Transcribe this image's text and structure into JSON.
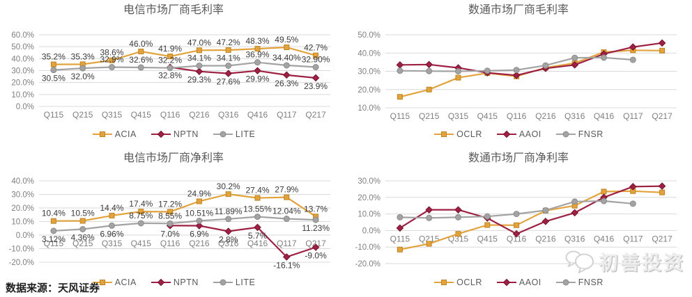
{
  "source_note": "数据来源：天风证券",
  "watermark": {
    "icon": "chat-bubbles-icon",
    "text": "初善投资"
  },
  "palette": {
    "orange": "#E2A23C",
    "maroon": "#9E2144",
    "gray": "#A3A3A3",
    "gridline": "#D9D9D9",
    "axis_text": "#7F7F7F",
    "data_label": "#3A3A3A",
    "title_text": "#595959",
    "legend_text": "#595959"
  },
  "chart_data": [
    {
      "id": "telecom-gross-margin",
      "type": "line",
      "title": "电信市场厂商毛利率",
      "categories": [
        "Q115",
        "Q215",
        "Q315",
        "Q415",
        "Q116",
        "Q216",
        "Q316",
        "Q416",
        "Q117",
        "Q217"
      ],
      "ylim": [
        0,
        60
      ],
      "ytick_step": 10,
      "grid": true,
      "legend_position": "bottom",
      "series": [
        {
          "name": "ACIA",
          "marker": "square",
          "color_key": "orange",
          "values": [
            35.2,
            35.3,
            38.6,
            46.0,
            41.9,
            47.0,
            47.2,
            48.3,
            49.5,
            42.7
          ],
          "labels": [
            "35.2%",
            "35.3%",
            "38.6%",
            "46.0%",
            "41.9%",
            "47.0%",
            "47.2%",
            "48.3%",
            "49.5%",
            "42.7%"
          ],
          "label_pos": [
            "a",
            "a",
            "a",
            "a",
            "a",
            "a",
            "a",
            "a",
            "a",
            "a"
          ]
        },
        {
          "name": "NPTN",
          "marker": "diamond",
          "color_key": "maroon",
          "values": [
            null,
            null,
            null,
            null,
            32.8,
            29.3,
            27.6,
            29.9,
            26.3,
            23.9
          ],
          "labels": [
            null,
            null,
            null,
            null,
            "32.8%",
            "29.3%",
            "27.6%",
            "29.9%",
            "26.3%",
            "23.9%"
          ],
          "label_pos": [
            null,
            null,
            null,
            null,
            "b",
            "b",
            "b",
            "b",
            "b",
            "b"
          ]
        },
        {
          "name": "LITE",
          "marker": "circle",
          "color_key": "gray",
          "values": [
            30.5,
            32.0,
            32.9,
            32.6,
            32.2,
            34.1,
            34.1,
            36.9,
            34.4,
            32.9
          ],
          "labels": [
            "30.5%",
            "32.0%",
            "32.9%",
            "32.6%",
            "32.2%",
            "34.1%",
            "34.1%",
            "36.9%",
            "34.40%",
            "32.90%"
          ],
          "label_pos": [
            "b",
            "b",
            "a",
            "a",
            "a",
            "a",
            "a",
            "a",
            "a",
            "a"
          ]
        }
      ]
    },
    {
      "id": "datacom-gross-margin",
      "type": "line",
      "title": "数通市场厂商毛利率",
      "categories": [
        "Q115",
        "Q215",
        "Q315",
        "Q415",
        "Q116",
        "Q216",
        "Q316",
        "Q416",
        "Q117",
        "Q217"
      ],
      "ylim": [
        10,
        50
      ],
      "ytick_step": 10,
      "grid": true,
      "legend_position": "bottom",
      "series": [
        {
          "name": "OCLR",
          "marker": "square",
          "color_key": "orange",
          "values": [
            16.0,
            20.0,
            26.5,
            29.0,
            27.2,
            32.0,
            34.5,
            40.5,
            41.5,
            41.3
          ]
        },
        {
          "name": "AAOI",
          "marker": "diamond",
          "color_key": "maroon",
          "values": [
            33.5,
            33.7,
            31.9,
            29.2,
            27.8,
            31.6,
            33.5,
            39.5,
            43.3,
            45.5
          ]
        },
        {
          "name": "FNSR",
          "marker": "circle",
          "color_key": "gray",
          "values": [
            30.3,
            30.1,
            30.0,
            30.3,
            30.7,
            33.2,
            37.4,
            37.5,
            36.3,
            null
          ]
        }
      ]
    },
    {
      "id": "telecom-net-margin",
      "type": "line",
      "title": "电信市场厂商净利率",
      "categories": [
        "Q115",
        "Q215",
        "Q315",
        "Q415",
        "Q116",
        "Q216",
        "Q316",
        "Q416",
        "Q117",
        "Q217"
      ],
      "ylim": [
        -20,
        40
      ],
      "ytick_step": 10,
      "grid": true,
      "legend_position": "bottom",
      "series": [
        {
          "name": "ACIA",
          "marker": "square",
          "color_key": "orange",
          "values": [
            10.4,
            10.5,
            14.4,
            17.4,
            17.2,
            24.9,
            30.2,
            27.4,
            27.9,
            13.7
          ],
          "labels": [
            "10.4%",
            "10.5%",
            "14.4%",
            "17.4%",
            "17.2%",
            "24.9%",
            "30.2%",
            "27.4%",
            "27.9%",
            "13.7%"
          ],
          "label_pos": [
            "a",
            "a",
            "a",
            "a",
            "a",
            "a",
            "a",
            "a",
            "a",
            "a"
          ]
        },
        {
          "name": "NPTN",
          "marker": "diamond",
          "color_key": "maroon",
          "values": [
            null,
            null,
            null,
            null,
            7.0,
            6.9,
            2.8,
            5.7,
            -16.1,
            -9.0
          ],
          "labels": [
            null,
            null,
            null,
            null,
            "7.0%",
            "6.9%",
            "2.8%",
            "5.7%",
            "-16.1%",
            "-9.0%"
          ],
          "label_pos": [
            null,
            null,
            null,
            null,
            "b",
            "b",
            "b",
            "b",
            "b",
            "b"
          ]
        },
        {
          "name": "LITE",
          "marker": "circle",
          "color_key": "gray",
          "values": [
            3.12,
            4.36,
            6.96,
            8.75,
            8.55,
            10.51,
            11.89,
            13.55,
            12.04,
            11.23
          ],
          "labels": [
            "3.12%",
            "4.36%",
            "6.96%",
            "8.75%",
            "8.55%",
            "10.51%",
            "11.89%",
            "13.55%",
            "12.04%",
            "11.23%"
          ],
          "label_pos": [
            "b",
            "b",
            "b",
            "a",
            "a",
            "a",
            "a",
            "a",
            "a",
            "b"
          ]
        }
      ]
    },
    {
      "id": "datacom-net-margin",
      "type": "line",
      "title": "数通市场厂商净利率",
      "categories": [
        "Q115",
        "Q215",
        "Q315",
        "Q415",
        "Q116",
        "Q216",
        "Q316",
        "Q416",
        "Q117",
        "Q217"
      ],
      "ylim": [
        -20,
        30
      ],
      "ytick_step": 10,
      "grid": true,
      "legend_position": "bottom",
      "series": [
        {
          "name": "OCLR",
          "marker": "square",
          "color_key": "orange",
          "values": [
            -11.5,
            -8.0,
            -2.0,
            3.3,
            3.2,
            12.0,
            15.0,
            23.5,
            23.8,
            23.0
          ]
        },
        {
          "name": "AAOI",
          "marker": "diamond",
          "color_key": "maroon",
          "values": [
            1.5,
            12.5,
            12.5,
            7.5,
            -2.0,
            5.5,
            10.7,
            20.0,
            26.5,
            26.8
          ]
        },
        {
          "name": "FNSR",
          "marker": "circle",
          "color_key": "gray",
          "values": [
            8.0,
            7.6,
            8.0,
            8.5,
            10.0,
            12.2,
            17.5,
            17.8,
            16.2,
            null
          ]
        }
      ]
    }
  ]
}
